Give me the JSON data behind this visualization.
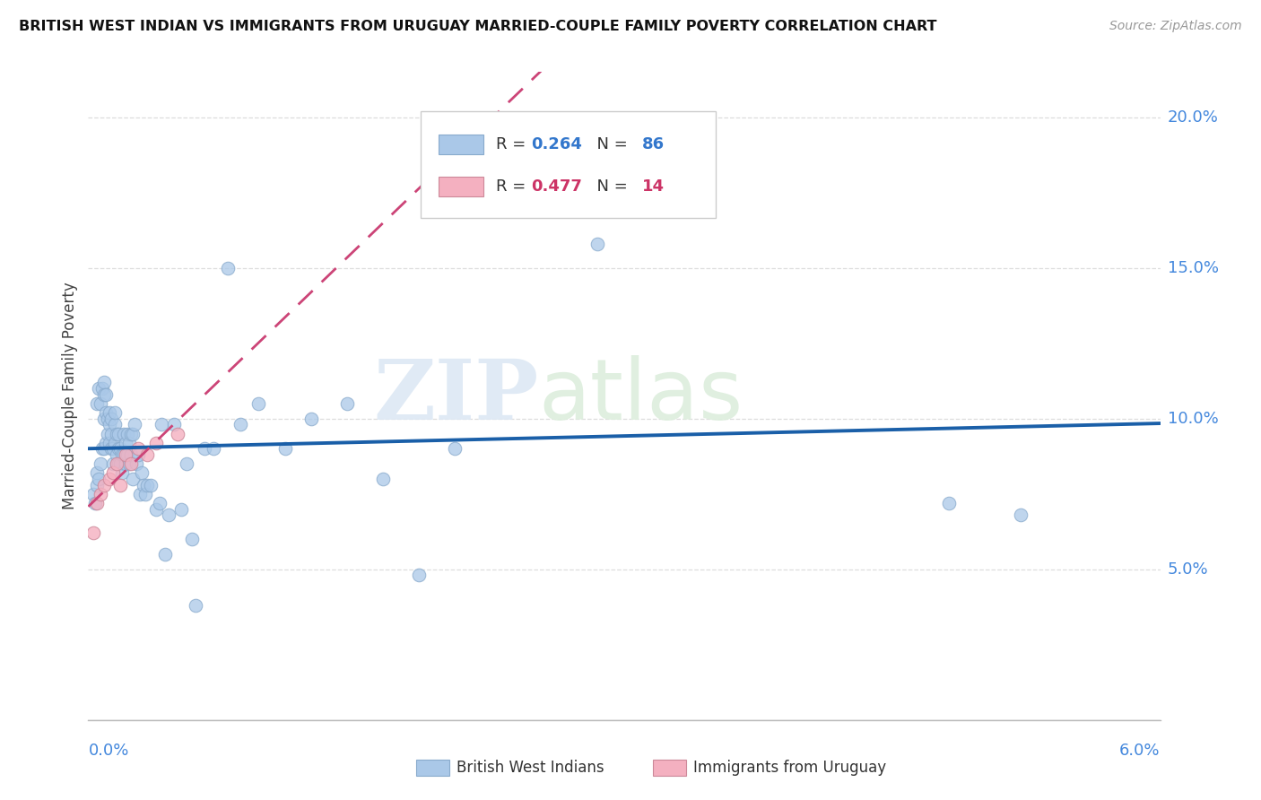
{
  "title": "BRITISH WEST INDIAN VS IMMIGRANTS FROM URUGUAY MARRIED-COUPLE FAMILY POVERTY CORRELATION CHART",
  "source": "Source: ZipAtlas.com",
  "ylabel": "Married-Couple Family Poverty",
  "xlim": [
    0.0,
    6.0
  ],
  "ylim": [
    0.0,
    21.5
  ],
  "ytick_vals": [
    5.0,
    10.0,
    15.0,
    20.0
  ],
  "bwi_R": 0.264,
  "bwi_N": 86,
  "uru_R": 0.477,
  "uru_N": 14,
  "bwi_color": "#aac8e8",
  "bwi_edge_color": "#88aacc",
  "uru_color": "#f4b0c0",
  "uru_edge_color": "#cc8899",
  "bwi_line_color": "#1a5fa8",
  "uru_line_color": "#cc4477",
  "grid_color": "#dddddd",
  "watermark_zip_color": "#e0e8f0",
  "watermark_atlas_color": "#dde8e0",
  "bwi_x": [
    0.03,
    0.04,
    0.05,
    0.05,
    0.05,
    0.06,
    0.06,
    0.07,
    0.07,
    0.08,
    0.08,
    0.09,
    0.09,
    0.09,
    0.09,
    0.1,
    0.1,
    0.1,
    0.11,
    0.11,
    0.12,
    0.12,
    0.12,
    0.13,
    0.13,
    0.13,
    0.14,
    0.14,
    0.15,
    0.15,
    0.15,
    0.16,
    0.16,
    0.17,
    0.17,
    0.17,
    0.18,
    0.18,
    0.19,
    0.19,
    0.2,
    0.2,
    0.21,
    0.21,
    0.22,
    0.22,
    0.23,
    0.23,
    0.24,
    0.24,
    0.25,
    0.25,
    0.26,
    0.27,
    0.28,
    0.29,
    0.3,
    0.31,
    0.32,
    0.33,
    0.35,
    0.38,
    0.4,
    0.41,
    0.43,
    0.45,
    0.48,
    0.52,
    0.55,
    0.58,
    0.6,
    0.65,
    0.7,
    0.78,
    0.85,
    0.95,
    1.1,
    1.25,
    1.45,
    1.65,
    1.85,
    2.05,
    2.25,
    2.85,
    4.82,
    5.22
  ],
  "bwi_y": [
    7.5,
    7.2,
    7.8,
    8.2,
    10.5,
    8.0,
    11.0,
    8.5,
    10.5,
    9.0,
    11.0,
    9.0,
    10.0,
    11.2,
    10.8,
    9.2,
    10.2,
    10.8,
    9.5,
    10.0,
    9.2,
    9.8,
    10.2,
    9.0,
    9.5,
    10.0,
    8.5,
    9.0,
    9.2,
    9.8,
    10.2,
    8.8,
    9.5,
    8.5,
    9.0,
    9.5,
    8.5,
    9.0,
    8.2,
    8.8,
    8.8,
    9.5,
    8.5,
    9.2,
    8.8,
    9.5,
    8.5,
    9.2,
    8.8,
    9.5,
    8.0,
    9.5,
    9.8,
    8.5,
    8.8,
    7.5,
    8.2,
    7.8,
    7.5,
    7.8,
    7.8,
    7.0,
    7.2,
    9.8,
    5.5,
    6.8,
    9.8,
    7.0,
    8.5,
    6.0,
    3.8,
    9.0,
    9.0,
    15.0,
    9.8,
    10.5,
    9.0,
    10.0,
    10.5,
    8.0,
    4.8,
    9.0,
    19.0,
    15.8,
    7.2,
    6.8
  ],
  "uru_x": [
    0.03,
    0.05,
    0.07,
    0.09,
    0.12,
    0.14,
    0.16,
    0.18,
    0.21,
    0.24,
    0.28,
    0.33,
    0.38,
    0.5
  ],
  "uru_y": [
    6.2,
    7.2,
    7.5,
    7.8,
    8.0,
    8.2,
    8.5,
    7.8,
    8.8,
    8.5,
    9.0,
    8.8,
    9.2,
    9.5
  ]
}
